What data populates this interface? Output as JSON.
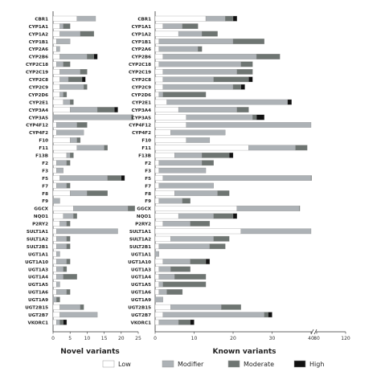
{
  "impact_colors": {
    "Low": "#ffffff",
    "Modifier": "#adb2b6",
    "Moderate": "#6e7572",
    "High": "#111111"
  },
  "legend": {
    "items": [
      "Low",
      "Modifier",
      "Moderate",
      "High"
    ]
  },
  "chart_data": [
    {
      "type": "bar",
      "orientation": "horizontal",
      "stacked": true,
      "xlabel": "Novel variants",
      "xlim": [
        0,
        25
      ],
      "xticks": [
        "0",
        "5",
        "10",
        "15",
        "20",
        "25"
      ],
      "categories": [
        "CBR1",
        "CYP1A1",
        "CYP1A2",
        "CYP1B1",
        "CYP2A6",
        "CYP2B6",
        "CYP2C18",
        "CYP2C19",
        "CYP2C8",
        "CYP2C9",
        "CYP2D6",
        "CYP2E1",
        "CYP3A4",
        "CYP3A5",
        "CYP4F12",
        "CYP4F2",
        "F10",
        "F11",
        "F13B",
        "F2",
        "F3",
        "F5",
        "F7",
        "F8",
        "F9",
        "GGCX",
        "NQO1",
        "P2RY2",
        "SULT1A1",
        "SULT1A2",
        "SULT2B1",
        "UGT1A1",
        "UGT1A10",
        "UGT1A3",
        "UGT1A4",
        "UGT1A5",
        "UGT1A6",
        "UGT1A9",
        "UGT2B15",
        "UGT2B7",
        "VKORC1"
      ],
      "series": [
        {
          "name": "Low",
          "values": [
            7,
            2,
            2,
            1,
            1,
            2,
            1,
            2,
            2,
            2,
            2,
            3,
            5,
            0,
            1,
            1,
            5,
            7,
            4,
            1,
            1,
            2,
            1,
            5,
            0,
            6,
            3,
            2,
            1,
            1,
            1,
            1,
            1,
            1,
            1,
            1,
            1,
            0,
            2,
            2,
            1
          ]
        },
        {
          "name": "Modifier",
          "values": [
            5.5,
            1,
            6,
            4,
            1,
            8,
            2,
            6,
            2.5,
            7,
            1,
            2,
            8,
            23,
            6,
            8,
            2,
            8,
            1,
            3,
            2,
            14,
            3,
            5,
            2,
            16,
            3,
            2,
            18,
            3,
            3,
            1,
            3,
            2,
            2,
            1,
            3,
            1,
            6,
            11,
            1
          ]
        },
        {
          "name": "Moderate",
          "values": [
            0,
            2,
            4,
            0,
            0,
            2,
            2,
            2,
            4,
            1,
            1,
            1,
            5,
            0.5,
            3,
            0,
            1,
            1,
            1,
            1,
            0,
            4,
            1,
            6,
            0,
            2,
            1,
            1,
            0,
            1,
            1,
            0,
            1,
            1,
            4,
            0,
            1,
            1,
            1,
            0,
            1
          ]
        },
        {
          "name": "High",
          "values": [
            0,
            0,
            0,
            0,
            0,
            1,
            0,
            0,
            1,
            0,
            0,
            0,
            1,
            0,
            0,
            0,
            0,
            0,
            0,
            0,
            0,
            1,
            0,
            0,
            0,
            0,
            0,
            0,
            0,
            0,
            0,
            0,
            0,
            0,
            0,
            0,
            0,
            0,
            0,
            0,
            1
          ]
        }
      ]
    },
    {
      "type": "bar",
      "orientation": "horizontal",
      "stacked": true,
      "xlabel": "Known variants",
      "axis_break": [
        40,
        80
      ],
      "xticks": [
        "0",
        "10",
        "20",
        "30",
        "40",
        "80",
        "120"
      ],
      "categories": [
        "CBR1",
        "CYP1A1",
        "CYP1A2",
        "CYP1B1",
        "CYP2A6",
        "CYP2B6",
        "CYP2C18",
        "CYP2C19",
        "CYP2C8",
        "CYP2C9",
        "CYP2D6",
        "CYP2E1",
        "CYP3A4",
        "CYP3A5",
        "CYP4F12",
        "CYP4F2",
        "F10",
        "F11",
        "F13B",
        "F2",
        "F3",
        "F5",
        "F7",
        "F8",
        "F9",
        "GGCX",
        "NQO1",
        "P2RY2",
        "SULT1A1",
        "SULT1A2",
        "SULT2B1",
        "UGT1A1",
        "UGT1A10",
        "UGT1A3",
        "UGT1A4",
        "UGT1A5",
        "UGT1A6",
        "UGT1A9",
        "UGT2B15",
        "UGT2B7",
        "VKORC1"
      ],
      "series": [
        {
          "name": "Low",
          "values": [
            13,
            2,
            6,
            1,
            1,
            2,
            1,
            2,
            2,
            2,
            1,
            3,
            6,
            8,
            8,
            4,
            8,
            24,
            5,
            1,
            1,
            2,
            1,
            5,
            1,
            21,
            6,
            2,
            22,
            4,
            1,
            0,
            2,
            1,
            1,
            1,
            1,
            0,
            4,
            2,
            1
          ]
        },
        {
          "name": "Modifier",
          "values": [
            5,
            5,
            6,
            19,
            10,
            24,
            21,
            19,
            13,
            18,
            1,
            31,
            15,
            17,
            32,
            14,
            6,
            12,
            7,
            11,
            12,
            38,
            14,
            11,
            6,
            16,
            9,
            7,
            18,
            11,
            13,
            1,
            7,
            3,
            4,
            1,
            2,
            2,
            13,
            26,
            5
          ]
        },
        {
          "name": "Moderate",
          "values": [
            2,
            4,
            4,
            8,
            1,
            6,
            3,
            4,
            9,
            2,
            11,
            0,
            3,
            1,
            0,
            0,
            0,
            3,
            7,
            3,
            0,
            4,
            0,
            3,
            2,
            5,
            5,
            5,
            0,
            4,
            4,
            0,
            4,
            5,
            8,
            11,
            4,
            0,
            5,
            1,
            3
          ]
        },
        {
          "name": "High",
          "values": [
            1,
            0,
            0,
            0,
            0,
            0,
            0,
            0,
            1,
            1,
            0,
            1,
            0,
            2,
            0,
            0,
            0,
            0,
            1,
            0,
            0,
            0,
            0,
            0,
            0,
            0,
            1,
            0,
            0,
            0,
            0,
            0,
            1,
            0,
            0,
            0,
            0,
            0,
            0,
            1,
            1
          ]
        }
      ]
    }
  ]
}
